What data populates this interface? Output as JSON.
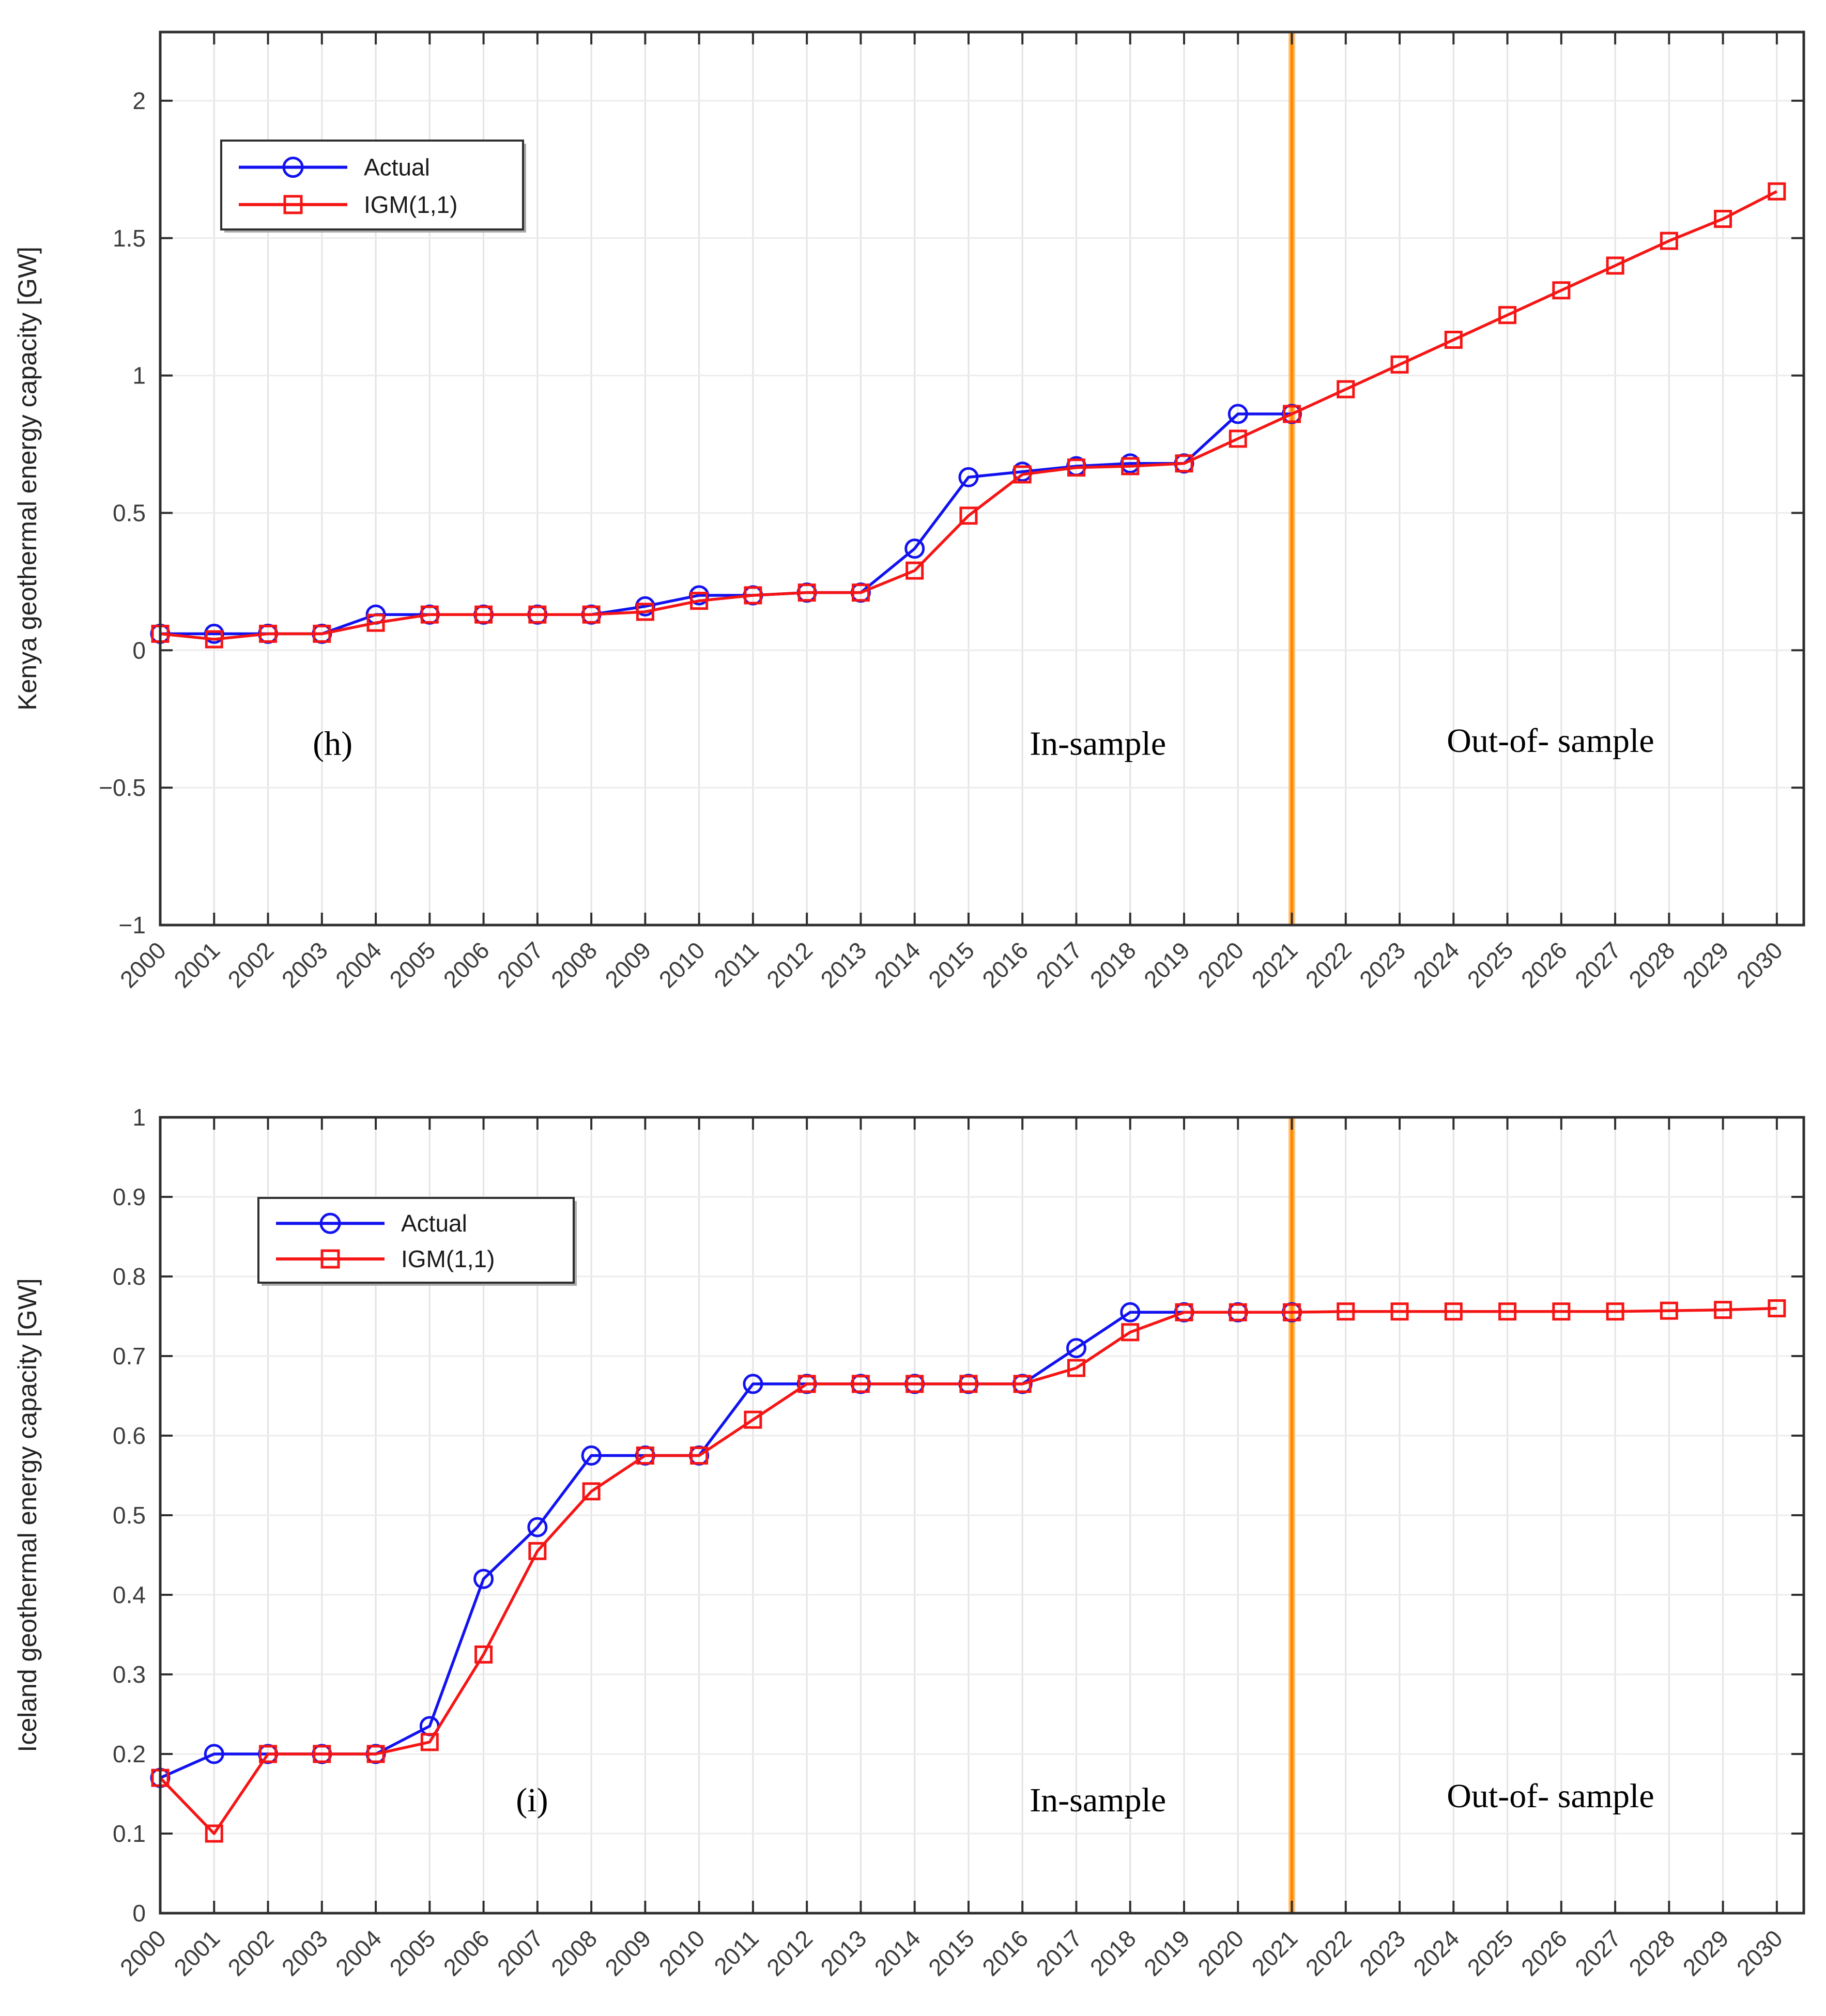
{
  "colors": {
    "actual": "#1212f0",
    "igm": "#f51515",
    "divider": "#ff8c00",
    "divider_glow": "#ffc27a",
    "grid": "#e4e4e4",
    "axis": "#2e2e2e",
    "tick_label": "#3c3c3c",
    "annotation": "#000000",
    "legend_border": "#2e2e2e",
    "legend_bg": "#ffffff"
  },
  "legend": {
    "items": [
      {
        "label": "Actual",
        "marker": "circle",
        "color_key": "actual"
      },
      {
        "label": "IGM(1,1)",
        "marker": "square",
        "color_key": "igm"
      }
    ]
  },
  "chart_data": [
    {
      "id": "kenya",
      "type": "line",
      "title": "",
      "xlabel": "",
      "ylabel": "Kenya geothermal energy capacity [GW]",
      "xlim": [
        2000,
        2030.5
      ],
      "ylim": [
        -1,
        2.25
      ],
      "grid": true,
      "legend_position": "upper-left",
      "divider_year": 2021,
      "x_years": [
        2000,
        2001,
        2002,
        2003,
        2004,
        2005,
        2006,
        2007,
        2008,
        2009,
        2010,
        2011,
        2012,
        2013,
        2014,
        2015,
        2016,
        2017,
        2018,
        2019,
        2020,
        2021,
        2022,
        2023,
        2024,
        2025,
        2026,
        2027,
        2028,
        2029,
        2030
      ],
      "yticks": [
        [
          "2",
          2
        ],
        [
          "1.5",
          1.5
        ],
        [
          "1",
          1
        ],
        [
          "0.5",
          0.5
        ],
        [
          "0",
          0
        ],
        [
          "−0.5",
          -0.5
        ],
        [
          "−1",
          -1
        ]
      ],
      "series": [
        {
          "name": "Actual",
          "color_key": "actual",
          "marker": "circle",
          "start_year": 2000,
          "values": [
            0.06,
            0.06,
            0.06,
            0.06,
            0.13,
            0.13,
            0.13,
            0.13,
            0.13,
            0.16,
            0.2,
            0.2,
            0.21,
            0.21,
            0.37,
            0.63,
            0.65,
            0.67,
            0.68,
            0.68,
            0.86,
            0.86
          ]
        },
        {
          "name": "IGM(1,1)",
          "color_key": "igm",
          "marker": "square",
          "start_year": 2000,
          "values": [
            0.06,
            0.04,
            0.06,
            0.06,
            0.1,
            0.13,
            0.13,
            0.13,
            0.13,
            0.14,
            0.18,
            0.2,
            0.21,
            0.21,
            0.29,
            0.49,
            0.64,
            0.665,
            0.67,
            0.68,
            0.77,
            0.86,
            0.95,
            1.04,
            1.13,
            1.22,
            1.31,
            1.4,
            1.49,
            1.57,
            1.67
          ]
        }
      ],
      "annotations": [
        {
          "name": "panel-label-h",
          "text": "(h)",
          "x": 2003.2,
          "y": -0.38
        },
        {
          "name": "in-sample-label",
          "text": "In-sample",
          "x": 2017.4,
          "y": -0.38
        },
        {
          "name": "out-of-sample-label",
          "text": "Out-of- sample",
          "x": 2025.8,
          "y": -0.37
        }
      ]
    },
    {
      "id": "iceland",
      "type": "line",
      "title": "",
      "xlabel": "",
      "ylabel": "Iceland geothermal energy capacity [GW]",
      "xlim": [
        2000,
        2030.5
      ],
      "ylim": [
        0,
        1
      ],
      "grid": true,
      "legend_position": "upper-left",
      "divider_year": 2021,
      "x_years": [
        2000,
        2001,
        2002,
        2003,
        2004,
        2005,
        2006,
        2007,
        2008,
        2009,
        2010,
        2011,
        2012,
        2013,
        2014,
        2015,
        2016,
        2017,
        2018,
        2019,
        2020,
        2021,
        2022,
        2023,
        2024,
        2025,
        2026,
        2027,
        2028,
        2029,
        2030
      ],
      "yticks": [
        [
          "1",
          1
        ],
        [
          "0.9",
          0.9
        ],
        [
          "0.8",
          0.8
        ],
        [
          "0.7",
          0.7
        ],
        [
          "0.6",
          0.6
        ],
        [
          "0.5",
          0.5
        ],
        [
          "0.4",
          0.4
        ],
        [
          "0.3",
          0.3
        ],
        [
          "0.2",
          0.2
        ],
        [
          "0.1",
          0.1
        ],
        [
          "0",
          0
        ]
      ],
      "series": [
        {
          "name": "Actual",
          "color_key": "actual",
          "marker": "circle",
          "start_year": 2000,
          "values": [
            0.17,
            0.2,
            0.2,
            0.2,
            0.2,
            0.235,
            0.42,
            0.485,
            0.575,
            0.575,
            0.575,
            0.665,
            0.665,
            0.665,
            0.665,
            0.665,
            0.665,
            0.71,
            0.755,
            0.755,
            0.755,
            0.755
          ]
        },
        {
          "name": "IGM(1,1)",
          "color_key": "igm",
          "marker": "square",
          "start_year": 2000,
          "values": [
            0.17,
            0.1,
            0.2,
            0.2,
            0.2,
            0.215,
            0.325,
            0.455,
            0.53,
            0.575,
            0.575,
            0.62,
            0.665,
            0.665,
            0.665,
            0.665,
            0.665,
            0.685,
            0.73,
            0.755,
            0.755,
            0.755,
            0.756,
            0.756,
            0.756,
            0.756,
            0.756,
            0.756,
            0.757,
            0.758,
            0.76
          ]
        }
      ],
      "annotations": [
        {
          "name": "panel-label-i",
          "text": "(i)",
          "x": 2006.9,
          "y": 0.128
        },
        {
          "name": "in-sample-label",
          "text": "In-sample",
          "x": 2017.4,
          "y": 0.128
        },
        {
          "name": "out-of-sample-label",
          "text": "Out-of- sample",
          "x": 2025.8,
          "y": 0.133
        }
      ]
    }
  ]
}
